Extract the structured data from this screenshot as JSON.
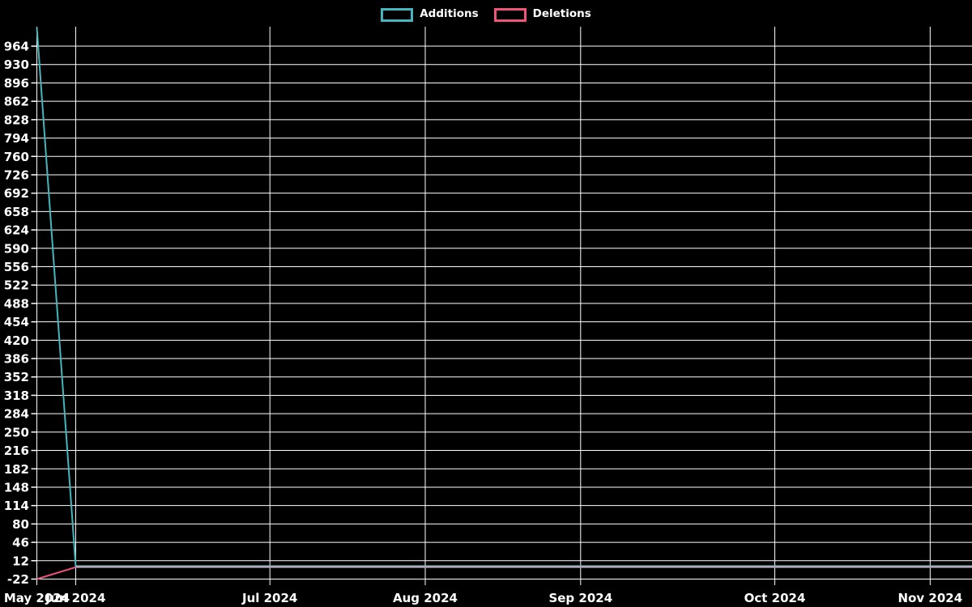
{
  "chart_data": {
    "type": "line",
    "title": "",
    "xlabel": "",
    "ylabel": "",
    "legend_position": "top-center",
    "grid": true,
    "background_color": "#000000",
    "grid_color": "#ffffff",
    "text_color": "#ffffff",
    "overlap_color": "#a0b4be",
    "ylim": [
      -22,
      1000
    ],
    "y_ticks": [
      -22,
      12,
      46,
      80,
      114,
      148,
      182,
      216,
      250,
      284,
      318,
      352,
      386,
      420,
      454,
      488,
      522,
      556,
      590,
      624,
      658,
      692,
      726,
      760,
      794,
      828,
      862,
      896,
      930,
      964
    ],
    "x_ticks": [
      {
        "index": 0,
        "label": "May 2024"
      },
      {
        "index": 1,
        "label": "Jun 2024"
      },
      {
        "index": 6,
        "label": "Jul 2024"
      },
      {
        "index": 10,
        "label": "Aug 2024"
      },
      {
        "index": 14,
        "label": "Sep 2024"
      },
      {
        "index": 19,
        "label": "Oct 2024"
      },
      {
        "index": 23,
        "label": "Nov 2024"
      }
    ],
    "series": [
      {
        "name": "Additions",
        "color": "#45b6bd",
        "values": [
          998,
          2,
          2,
          2,
          2,
          2,
          2,
          2,
          2,
          2,
          2,
          2,
          2,
          2,
          2,
          2,
          2,
          2,
          2,
          2,
          2,
          2,
          2,
          2,
          2
        ]
      },
      {
        "name": "Deletions",
        "color": "#ee5577",
        "values": [
          -22,
          0,
          0,
          0,
          0,
          0,
          0,
          0,
          0,
          0,
          0,
          0,
          0,
          0,
          0,
          0,
          0,
          0,
          0,
          0,
          0,
          0,
          0,
          0,
          0
        ]
      }
    ]
  },
  "legend": {
    "items": [
      {
        "label": "Additions",
        "color": "#45b6bd"
      },
      {
        "label": "Deletions",
        "color": "#ee5577"
      }
    ]
  }
}
